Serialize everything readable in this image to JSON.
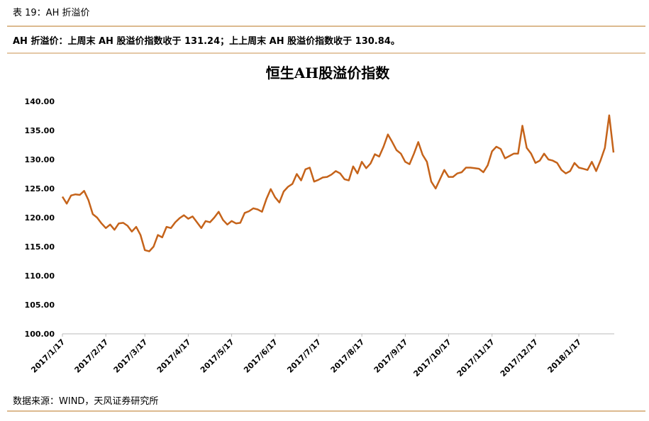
{
  "header": {
    "title": "表 19：AH 折溢价",
    "summary": "AH 折溢价：上周末 AH 股溢价指数收于 131.24；上上周末 AH 股溢价指数收于 130.84。"
  },
  "chart_data": {
    "type": "line",
    "title": "恒生AH股溢价指数",
    "categories": [
      "2017/1/17",
      null,
      null,
      null,
      null,
      null,
      null,
      null,
      null,
      null,
      "2017/2/17",
      null,
      null,
      null,
      null,
      null,
      null,
      null,
      null,
      "2017/3/17",
      null,
      null,
      null,
      null,
      null,
      null,
      null,
      null,
      null,
      "2017/4/17",
      null,
      null,
      null,
      null,
      null,
      null,
      null,
      null,
      null,
      "2017/5/17",
      null,
      null,
      null,
      null,
      null,
      null,
      null,
      null,
      null,
      "2017/6/17",
      null,
      null,
      null,
      null,
      null,
      null,
      null,
      null,
      null,
      "2017/7/17",
      null,
      null,
      null,
      null,
      null,
      null,
      null,
      null,
      null,
      "2017/8/17",
      null,
      null,
      null,
      null,
      null,
      null,
      null,
      null,
      null,
      "2017/9/17",
      null,
      null,
      null,
      null,
      null,
      null,
      null,
      null,
      null,
      "2017/10/17",
      null,
      null,
      null,
      null,
      null,
      null,
      null,
      null,
      null,
      "2017/11/17",
      null,
      null,
      null,
      null,
      null,
      null,
      null,
      null,
      null,
      "2017/12/17",
      null,
      null,
      null,
      null,
      null,
      null,
      null,
      null,
      null,
      "2018/1/17",
      null,
      null,
      null,
      null,
      null,
      null,
      null,
      null
    ],
    "series": [
      {
        "color": "#c5631a",
        "values": [
          123.6,
          122.4,
          123.8,
          124.0,
          123.9,
          124.6,
          123.0,
          120.6,
          120.0,
          119.0,
          118.2,
          118.8,
          117.9,
          119.0,
          119.1,
          118.6,
          117.6,
          118.4,
          117.0,
          114.4,
          114.2,
          115.0,
          117.0,
          116.6,
          118.4,
          118.2,
          119.2,
          119.9,
          120.4,
          119.8,
          120.2,
          119.2,
          118.2,
          119.4,
          119.2,
          120.0,
          121.0,
          119.6,
          118.8,
          119.4,
          119.0,
          119.1,
          120.8,
          121.1,
          121.6,
          121.4,
          121.0,
          123.2,
          124.9,
          123.5,
          122.6,
          124.5,
          125.3,
          125.8,
          127.5,
          126.4,
          128.3,
          128.6,
          126.2,
          126.5,
          126.9,
          127.0,
          127.4,
          128.0,
          127.6,
          126.6,
          126.4,
          128.8,
          127.6,
          129.6,
          128.5,
          129.3,
          130.9,
          130.5,
          132.2,
          134.3,
          133.0,
          131.6,
          131.0,
          129.6,
          129.2,
          131.0,
          133.0,
          130.8,
          129.6,
          126.2,
          125.0,
          126.6,
          128.2,
          127.0,
          127.0,
          127.6,
          127.8,
          128.6,
          128.6,
          128.5,
          128.4,
          127.8,
          129.0,
          131.4,
          132.2,
          131.8,
          130.2,
          130.6,
          131.0,
          131.0,
          135.8,
          132.0,
          131.0,
          129.4,
          129.8,
          131.0,
          130.0,
          129.8,
          129.4,
          128.2,
          127.6,
          128.0,
          129.4,
          128.6,
          128.4,
          128.2,
          129.6,
          128.0,
          129.8,
          132.0,
          137.6,
          131.2
        ]
      }
    ],
    "ylim": [
      100,
      140
    ],
    "yticks": [
      {
        "value": 100,
        "label": "100.00"
      },
      {
        "value": 105,
        "label": "105.00"
      },
      {
        "value": 110,
        "label": "110.00"
      },
      {
        "value": 115,
        "label": "115.00"
      },
      {
        "value": 120,
        "label": "120.00"
      },
      {
        "value": 125,
        "label": "125.00"
      },
      {
        "value": 130,
        "label": "130.00"
      },
      {
        "value": 135,
        "label": "135.00"
      },
      {
        "value": 140,
        "label": "140.00"
      }
    ]
  },
  "footer": {
    "source": "数据来源：WIND，天风证券研究所"
  }
}
